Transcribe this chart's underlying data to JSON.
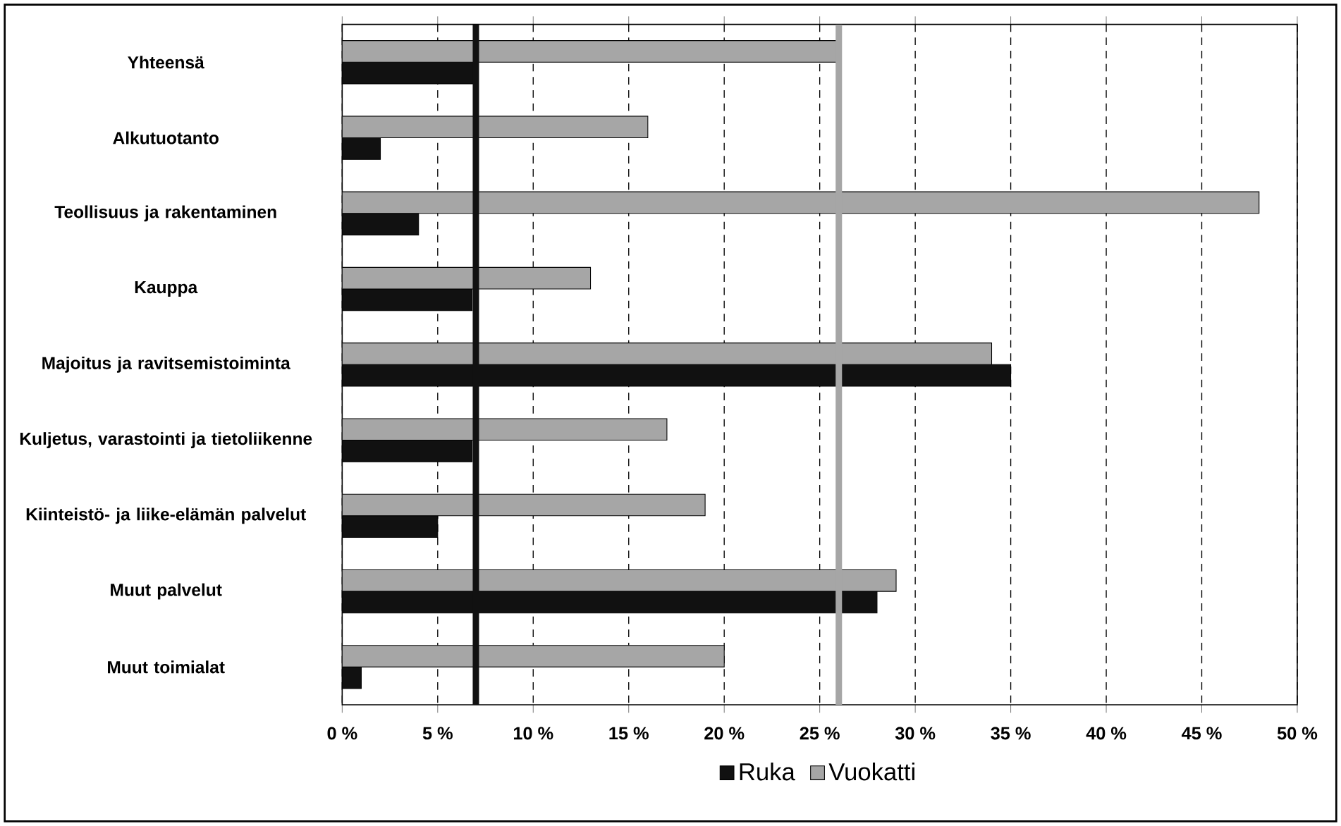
{
  "chart_data": {
    "type": "bar",
    "orientation": "horizontal",
    "categories": [
      "Yhteensä",
      "Alkutuotanto",
      "Teollisuus ja rakentaminen",
      "Kauppa",
      "Majoitus ja ravitsemistoiminta",
      "Kuljetus, varastointi ja tietoliikenne",
      "Kiinteistö- ja liike-elämän palvelut",
      "Muut palvelut",
      "Muut toimialat"
    ],
    "series": [
      {
        "name": "Ruka",
        "color": "#111111",
        "values": [
          7,
          2,
          4,
          6.8,
          35,
          6.8,
          5,
          28,
          1
        ]
      },
      {
        "name": "Vuokatti",
        "color": "#a6a6a6",
        "values": [
          26,
          16,
          48,
          13,
          34,
          17,
          19,
          29,
          20
        ]
      }
    ],
    "xlim": [
      0,
      50
    ],
    "xticks": [
      {
        "value": 0,
        "label": "0 %"
      },
      {
        "value": 5,
        "label": "5 %"
      },
      {
        "value": 10,
        "label": "10 %"
      },
      {
        "value": 15,
        "label": "15 %"
      },
      {
        "value": 20,
        "label": "20 %"
      },
      {
        "value": 25,
        "label": "25 %"
      },
      {
        "value": 30,
        "label": "30 %"
      },
      {
        "value": 35,
        "label": "35 %"
      },
      {
        "value": 40,
        "label": "40 %"
      },
      {
        "value": 45,
        "label": "45 %"
      },
      {
        "value": 50,
        "label": "50 %"
      }
    ],
    "grid": "x",
    "legend": "bottom",
    "ref_lines": [
      {
        "axis": "x",
        "value": 7,
        "color": "#111111"
      },
      {
        "axis": "x",
        "value": 26,
        "color": "#a6a6a6"
      }
    ]
  }
}
